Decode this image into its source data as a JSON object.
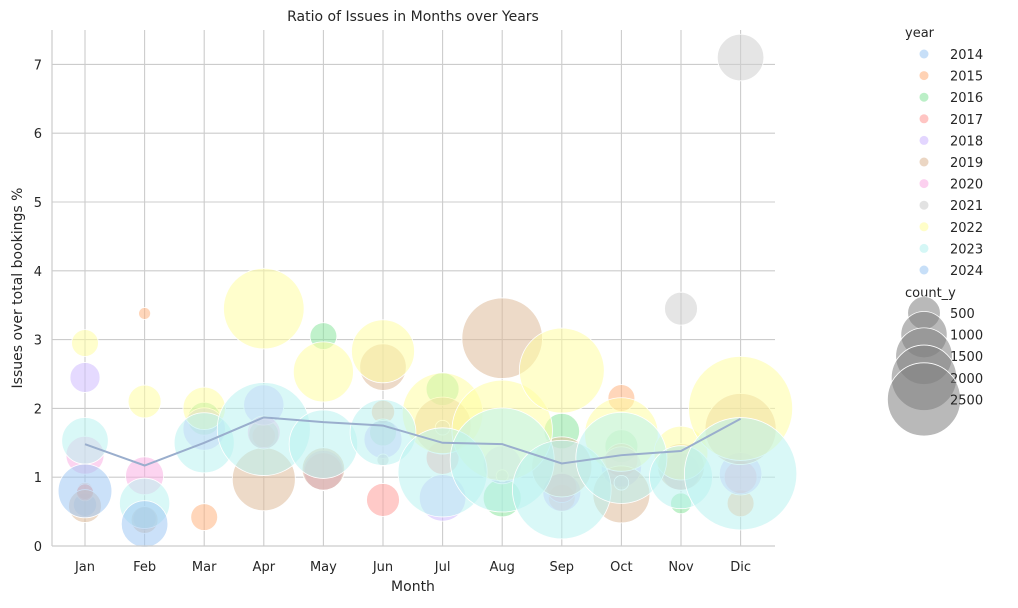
{
  "chart_data": {
    "type": "scatter",
    "title": "Ratio of Issues in Months over Years",
    "xlabel": "Month",
    "ylabel": "Issues over total bookings %",
    "categories": [
      "Jan",
      "Feb",
      "Mar",
      "Apr",
      "May",
      "Jun",
      "Jul",
      "Aug",
      "Sep",
      "Oct",
      "Nov",
      "Dic"
    ],
    "ylim": [
      0,
      7.5
    ],
    "yticks": [
      0,
      1,
      2,
      3,
      4,
      5,
      6,
      7
    ],
    "grid": true,
    "legend_placement": "outside-right",
    "legend": {
      "hue_title": "year",
      "size_title": "count_y",
      "size_entries": [
        500,
        1000,
        1500,
        2000,
        2500
      ]
    },
    "colors": {
      "2014": "#a1c9f4",
      "2015": "#ffb482",
      "2016": "#8de5a1",
      "2017": "#ff9f9b",
      "2018": "#d0bbff",
      "2019": "#debb9b",
      "2020": "#fab0e4",
      "2021": "#cfcfcf",
      "2022": "#fffea3",
      "2023": "#b9f2f0",
      "2024": "#a1c9f4",
      "trend": "#9aaecd"
    },
    "series": [
      {
        "name": "2014",
        "points": [
          {
            "x": "Jan",
            "y": 0.6,
            "count": 150
          },
          {
            "x": "Feb",
            "y": 0.4,
            "count": 150
          }
        ]
      },
      {
        "name": "2015",
        "points": [
          {
            "x": "Jan",
            "y": 0.8,
            "count": 80
          },
          {
            "x": "Feb",
            "y": 3.38,
            "count": 40
          },
          {
            "x": "Mar",
            "y": 0.42,
            "count": 200
          },
          {
            "x": "Apr",
            "y": 1.6,
            "count": 150
          },
          {
            "x": "Jun",
            "y": 1.95,
            "count": 150
          },
          {
            "x": "Sep",
            "y": 0.7,
            "count": 200
          },
          {
            "x": "Oct",
            "y": 2.15,
            "count": 200
          },
          {
            "x": "Dic",
            "y": 0.62,
            "count": 200
          }
        ]
      },
      {
        "name": "2016",
        "points": [
          {
            "x": "Mar",
            "y": 1.85,
            "count": 300
          },
          {
            "x": "Apr",
            "y": 1.62,
            "count": 250
          },
          {
            "x": "May",
            "y": 3.05,
            "count": 200
          },
          {
            "x": "Jun",
            "y": 1.65,
            "count": 200
          },
          {
            "x": "Jul",
            "y": 2.28,
            "count": 300
          },
          {
            "x": "Aug",
            "y": 0.7,
            "count": 400
          },
          {
            "x": "Sep",
            "y": 1.67,
            "count": 350
          },
          {
            "x": "Oct",
            "y": 1.45,
            "count": 300
          },
          {
            "x": "Nov",
            "y": 0.62,
            "count": 120
          }
        ]
      },
      {
        "name": "2017",
        "points": [
          {
            "x": "Jan",
            "y": 0.78,
            "count": 80
          },
          {
            "x": "May",
            "y": 1.08,
            "count": 400
          },
          {
            "x": "Jun",
            "y": 0.67,
            "count": 300
          },
          {
            "x": "Jul",
            "y": 1.28,
            "count": 300
          },
          {
            "x": "Sep",
            "y": 0.85,
            "count": 250
          },
          {
            "x": "Oct",
            "y": 1.25,
            "count": 300
          },
          {
            "x": "Dic",
            "y": 1.0,
            "count": 300
          }
        ]
      },
      {
        "name": "2018",
        "points": [
          {
            "x": "Jan",
            "y": 2.45,
            "count": 250
          },
          {
            "x": "Mar",
            "y": 1.7,
            "count": 500
          },
          {
            "x": "Apr",
            "y": 2.05,
            "count": 450
          },
          {
            "x": "May",
            "y": 1.1,
            "count": 450
          },
          {
            "x": "Jun",
            "y": 1.55,
            "count": 400
          },
          {
            "x": "Jul",
            "y": 0.7,
            "count": 600
          },
          {
            "x": "Aug",
            "y": 1.18,
            "count": 400
          },
          {
            "x": "Sep",
            "y": 0.78,
            "count": 400
          },
          {
            "x": "Oct",
            "y": 1.15,
            "count": 450
          },
          {
            "x": "Nov",
            "y": 1.08,
            "count": 400
          },
          {
            "x": "Dic",
            "y": 1.05,
            "count": 500
          }
        ]
      },
      {
        "name": "2019",
        "points": [
          {
            "x": "Jan",
            "y": 0.58,
            "count": 300
          },
          {
            "x": "Feb",
            "y": 0.38,
            "count": 200
          },
          {
            "x": "Apr",
            "y": 0.97,
            "count": 1100
          },
          {
            "x": "May",
            "y": 1.12,
            "count": 500
          },
          {
            "x": "Jun",
            "y": 2.6,
            "count": 600
          },
          {
            "x": "Jul",
            "y": 1.75,
            "count": 900
          },
          {
            "x": "Aug",
            "y": 3.02,
            "count": 1800
          },
          {
            "x": "Sep",
            "y": 1.15,
            "count": 1000
          },
          {
            "x": "Oct",
            "y": 0.75,
            "count": 900
          },
          {
            "x": "Nov",
            "y": 1.15,
            "count": 600
          },
          {
            "x": "Dic",
            "y": 1.7,
            "count": 1400
          }
        ]
      },
      {
        "name": "2020",
        "points": [
          {
            "x": "Jan",
            "y": 1.32,
            "count": 400
          },
          {
            "x": "Feb",
            "y": 1.02,
            "count": 400
          },
          {
            "x": "Apr",
            "y": 1.65,
            "count": 300
          }
        ]
      },
      {
        "name": "2021",
        "points": [
          {
            "x": "Jun",
            "y": 1.25,
            "count": 40
          },
          {
            "x": "Jul",
            "y": 1.72,
            "count": 60
          },
          {
            "x": "Aug",
            "y": 1.02,
            "count": 40
          },
          {
            "x": "Oct",
            "y": 0.92,
            "count": 60
          },
          {
            "x": "Nov",
            "y": 3.45,
            "count": 300
          },
          {
            "x": "Dic",
            "y": 7.1,
            "count": 600
          }
        ]
      },
      {
        "name": "2022",
        "points": [
          {
            "x": "Jan",
            "y": 2.95,
            "count": 200
          },
          {
            "x": "Feb",
            "y": 2.1,
            "count": 300
          },
          {
            "x": "Mar",
            "y": 2.0,
            "count": 500
          },
          {
            "x": "Apr",
            "y": 3.45,
            "count": 1800
          },
          {
            "x": "May",
            "y": 2.53,
            "count": 1000
          },
          {
            "x": "Jun",
            "y": 2.83,
            "count": 1100
          },
          {
            "x": "Jul",
            "y": 1.93,
            "count": 1800
          },
          {
            "x": "Aug",
            "y": 1.68,
            "count": 2800
          },
          {
            "x": "Sep",
            "y": 2.55,
            "count": 2000
          },
          {
            "x": "Oct",
            "y": 1.62,
            "count": 1500
          },
          {
            "x": "Nov",
            "y": 1.35,
            "count": 800
          },
          {
            "x": "Dic",
            "y": 2.0,
            "count": 3000
          }
        ]
      },
      {
        "name": "2023",
        "points": [
          {
            "x": "Jan",
            "y": 1.53,
            "count": 600
          },
          {
            "x": "Feb",
            "y": 0.62,
            "count": 700
          },
          {
            "x": "Mar",
            "y": 1.5,
            "count": 1000
          },
          {
            "x": "Apr",
            "y": 1.7,
            "count": 2400
          },
          {
            "x": "May",
            "y": 1.48,
            "count": 1300
          },
          {
            "x": "Jun",
            "y": 1.65,
            "count": 1200
          },
          {
            "x": "Jul",
            "y": 1.07,
            "count": 2200
          },
          {
            "x": "Aug",
            "y": 1.25,
            "count": 3000
          },
          {
            "x": "Sep",
            "y": 0.82,
            "count": 2700
          },
          {
            "x": "Oct",
            "y": 1.28,
            "count": 2300
          },
          {
            "x": "Nov",
            "y": 1.0,
            "count": 1100
          },
          {
            "x": "Dic",
            "y": 1.05,
            "count": 3500
          }
        ]
      },
      {
        "name": "2024",
        "points": [
          {
            "x": "Jan",
            "y": 0.8,
            "count": 800
          },
          {
            "x": "Feb",
            "y": 0.32,
            "count": 600
          }
        ]
      }
    ],
    "trend": {
      "x": [
        "Jan",
        "Feb",
        "Mar",
        "Apr",
        "May",
        "Jun",
        "Jul",
        "Aug",
        "Sep",
        "Oct",
        "Nov",
        "Dic"
      ],
      "y": [
        1.48,
        1.17,
        1.5,
        1.87,
        1.8,
        1.75,
        1.5,
        1.48,
        1.2,
        1.32,
        1.38,
        1.85
      ]
    }
  }
}
